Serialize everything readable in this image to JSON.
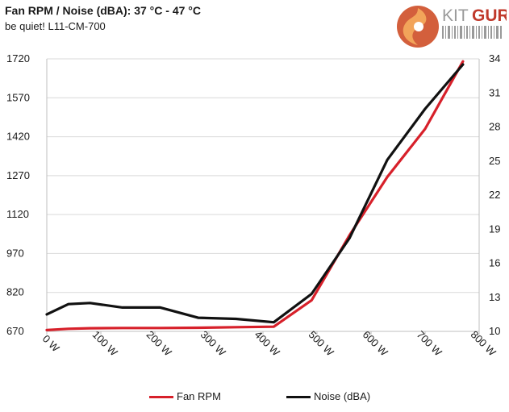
{
  "header": {
    "title": "Fan RPM / Noise (dBA): 37 °C - 47 °C",
    "subtitle": "be quiet! L11-CM-700"
  },
  "logo": {
    "text_kit": "KIT",
    "text_guru": "GURU"
  },
  "colors": {
    "fan": "#d7202a",
    "noise": "#111111",
    "grid": "#d9d9d9",
    "axis": "#bfbfbf",
    "logo_orange": "#e8833a",
    "logo_red": "#c0392b"
  },
  "chart_data": {
    "type": "line",
    "x": [
      0,
      40,
      80,
      140,
      210,
      280,
      350,
      420,
      490,
      560,
      630,
      700,
      770
    ],
    "x_tick_labels": [
      "0 W",
      "100 W",
      "200 W",
      "300 W",
      "400 W",
      "500 W",
      "600 W",
      "700 W",
      "800 W"
    ],
    "x_ticks": [
      0,
      100,
      200,
      300,
      400,
      500,
      600,
      700,
      800
    ],
    "xlim": [
      0,
      800
    ],
    "y_left": {
      "ticks": [
        670,
        820,
        970,
        1120,
        1270,
        1420,
        1570,
        1720
      ],
      "ylim": [
        670,
        1720
      ]
    },
    "y_right": {
      "ticks": [
        10,
        13,
        16,
        19,
        22,
        25,
        28,
        31,
        34
      ],
      "ylim": [
        10,
        34
      ]
    },
    "series": [
      {
        "name": "Fan RPM",
        "axis": "left",
        "values": [
          675,
          680,
          682,
          683,
          683,
          684,
          686,
          688,
          790,
          1040,
          1265,
          1450,
          1710
        ]
      },
      {
        "name": "Noise (dBA)",
        "axis": "right",
        "values": [
          11.5,
          12.4,
          12.5,
          12.1,
          12.1,
          11.2,
          11.1,
          10.8,
          13.3,
          18.2,
          25.1,
          29.6,
          33.5
        ]
      }
    ],
    "grid": "horizontal",
    "legend_position": "bottom"
  }
}
